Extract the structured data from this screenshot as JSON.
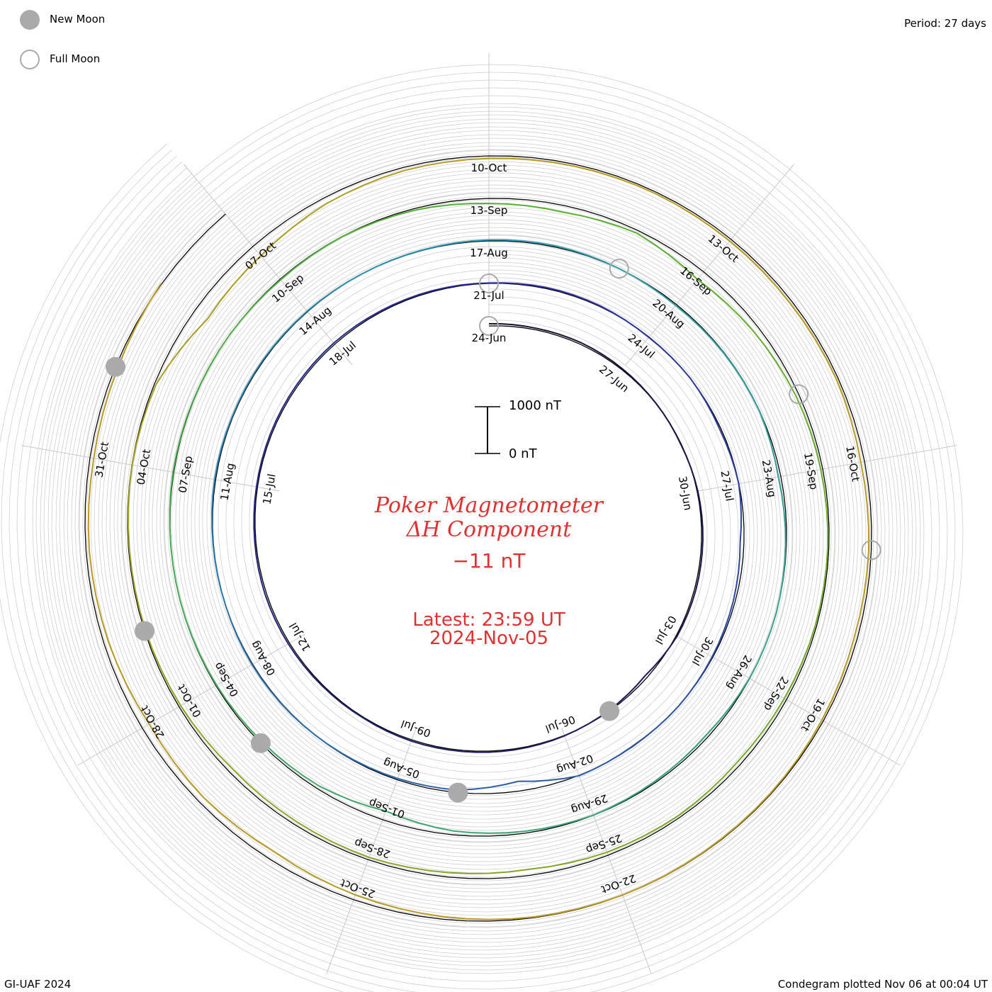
{
  "legend": {
    "new_moon_label": "New Moon",
    "full_moon_label": "Full Moon",
    "new_moon_color": "#aaaaaa",
    "full_moon_color": "#aaaaaa"
  },
  "header": {
    "period": "Period: 27 days"
  },
  "center": {
    "title_line1": "Poker Magnetometer",
    "title_line2": "ΔH Component",
    "current_value": "−11 nT",
    "latest_time": "Latest: 23:59 UT",
    "latest_date": "2024-Nov-05",
    "scale_top": "1000 nT",
    "scale_bottom": "0 nT",
    "title_color": "#e23030"
  },
  "footer": {
    "left": "GI-UAF 2024",
    "right": "Condegram plotted Nov 06 at 00:04 UT"
  },
  "chart_data": {
    "type": "line",
    "chart_kind": "condegram spiral",
    "period_days": 27,
    "start_date": "2024-06-24",
    "end_date": "2024-11-05",
    "units": "nT",
    "scale_bar": [
      0,
      1000
    ],
    "rings": [
      {
        "name": "24-Jun",
        "color": "#101030",
        "labels": [
          "24-Jun",
          "27-Jun",
          "30-Jun",
          "03-Jul",
          "06-Jul",
          "09-Jul",
          "12-Jul",
          "15-Jul",
          "18-Jul"
        ]
      },
      {
        "name": "21-Jul",
        "color": "#2a2a9a",
        "labels": [
          "21-Jul",
          "24-Jul",
          "27-Jul",
          "30-Jul",
          "02-Aug",
          "05-Aug",
          "08-Aug",
          "11-Aug",
          "14-Aug"
        ]
      },
      {
        "name": "17-Aug",
        "color": "#2a9ab0",
        "labels": [
          "17-Aug",
          "20-Aug",
          "23-Aug",
          "26-Aug",
          "29-Aug",
          "01-Sep",
          "04-Sep",
          "07-Sep",
          "10-Sep"
        ]
      },
      {
        "name": "13-Sep",
        "color": "#55b030",
        "labels": [
          "13-Sep",
          "16-Sep",
          "19-Sep",
          "22-Sep",
          "25-Sep",
          "28-Sep",
          "01-Oct",
          "04-Oct",
          "07-Oct"
        ]
      },
      {
        "name": "10-Oct",
        "color": "#b89a20",
        "labels": [
          "10-Oct",
          "13-Oct",
          "16-Oct",
          "19-Oct",
          "22-Oct",
          "25-Oct",
          "28-Oct",
          "31-Oct"
        ]
      }
    ],
    "new_moons": [
      "2024-07-05",
      "2024-08-04",
      "2024-09-03",
      "2024-10-02",
      "2024-11-01"
    ],
    "full_moons": [
      "2024-06-22",
      "2024-07-21",
      "2024-08-19",
      "2024-09-18",
      "2024-10-17"
    ],
    "deltaH_daily_nT": [
      20,
      40,
      35,
      60,
      90,
      110,
      70,
      50,
      45,
      60,
      180,
      120,
      80,
      60,
      55,
      50,
      70,
      60,
      45,
      40,
      55,
      60,
      50,
      45,
      40,
      55,
      60,
      80,
      60,
      70,
      110,
      90,
      140,
      100,
      220,
      160,
      120,
      90,
      110,
      80,
      420,
      180,
      140,
      110,
      80,
      70,
      90,
      80,
      60,
      70,
      65,
      75,
      90,
      80,
      60,
      55,
      90,
      140,
      110,
      100,
      180,
      120,
      90,
      100,
      180,
      140,
      100,
      160,
      220,
      400,
      200,
      160,
      120,
      100,
      90,
      70,
      80,
      90,
      120,
      100,
      150,
      260,
      320,
      190,
      420,
      300,
      200,
      160,
      130,
      140,
      180,
      220,
      170,
      200,
      300,
      240,
      180,
      210,
      240,
      160,
      130,
      120,
      100,
      150,
      600,
      500,
      300,
      200,
      180,
      160,
      150,
      170,
      180,
      160,
      220,
      180,
      200,
      150,
      120,
      110,
      100,
      120,
      180,
      260,
      380,
      300,
      360,
      250,
      200,
      220,
      180,
      70
    ]
  }
}
